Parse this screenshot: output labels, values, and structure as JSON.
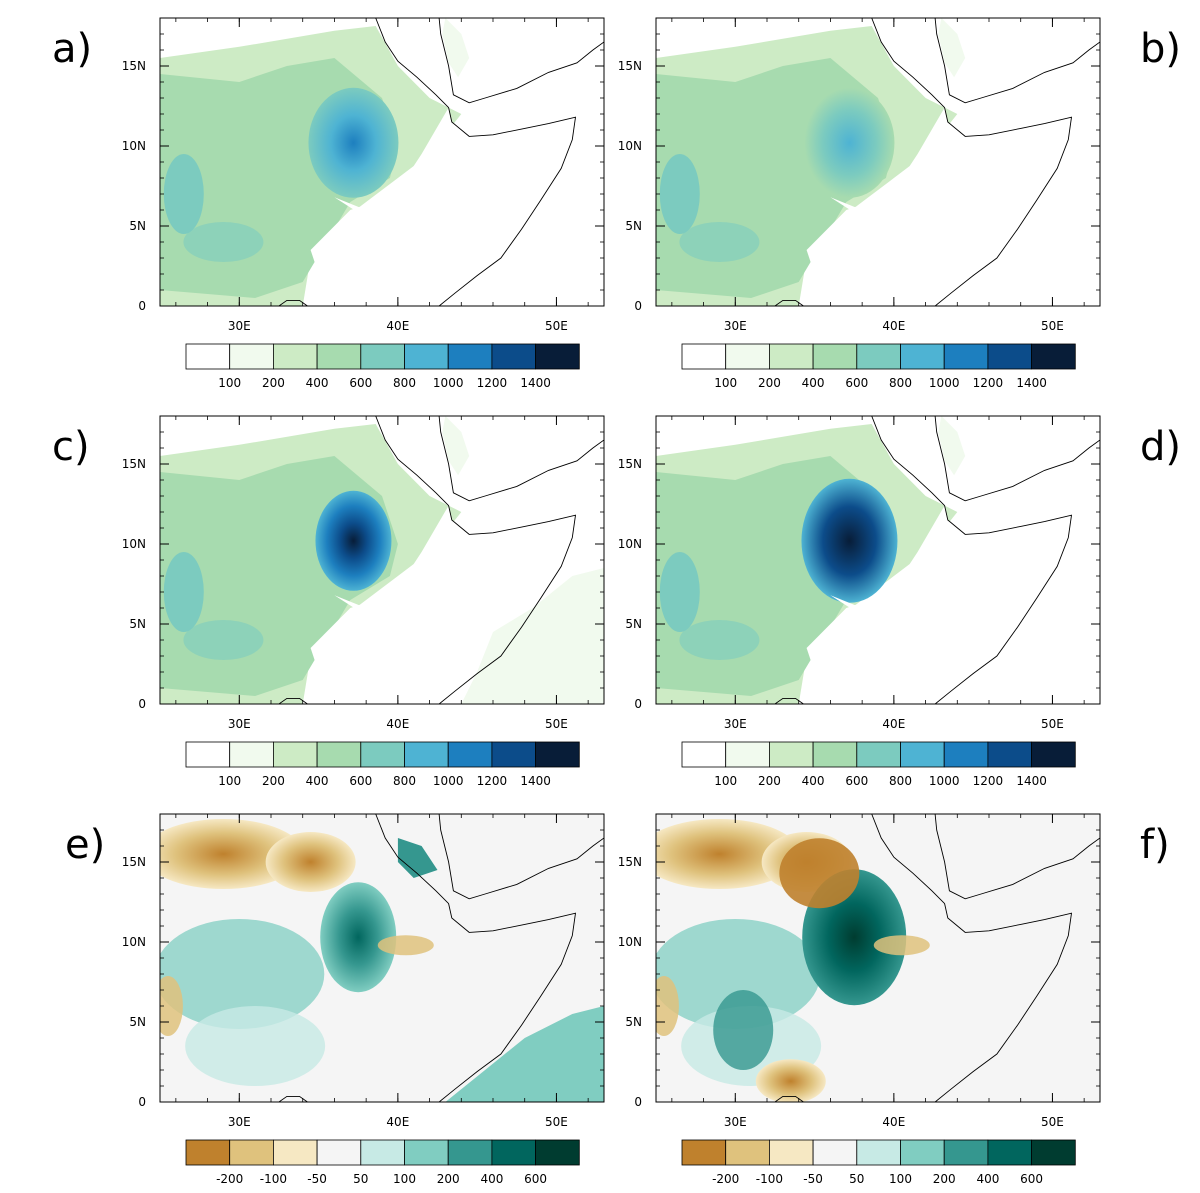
{
  "panels": [
    {
      "letter": "a)",
      "type": "precip"
    },
    {
      "letter": "b)",
      "type": "precip"
    },
    {
      "letter": "c)",
      "type": "precip"
    },
    {
      "letter": "d)",
      "type": "precip"
    },
    {
      "letter": "e)",
      "type": "diff"
    },
    {
      "letter": "f)",
      "type": "diff"
    }
  ],
  "axes": {
    "lon_range": [
      25,
      53
    ],
    "lat_range": [
      0,
      18
    ],
    "x_ticks": [
      {
        "value": 30,
        "label": "30E"
      },
      {
        "value": 40,
        "label": "40E"
      },
      {
        "value": 50,
        "label": "50E"
      }
    ],
    "y_ticks": [
      {
        "value": 0,
        "label": "0"
      },
      {
        "value": 5,
        "label": "5N"
      },
      {
        "value": 10,
        "label": "10N"
      },
      {
        "value": 15,
        "label": "15N"
      }
    ]
  },
  "colorbars": {
    "precip": {
      "labels": [
        "100",
        "200",
        "400",
        "600",
        "800",
        "1000",
        "1200",
        "1400"
      ],
      "colors": [
        "#ffffff",
        "#f1faee",
        "#cdebc5",
        "#a7dbaf",
        "#7ccbbf",
        "#4eb3d3",
        "#1d7fbf",
        "#0c4c8a",
        "#081d38"
      ]
    },
    "diff": {
      "labels": [
        "-200",
        "-100",
        "-50",
        "50",
        "100",
        "200",
        "400",
        "600"
      ],
      "colors": [
        "#bf812d",
        "#dfc27d",
        "#f6e8c3",
        "#f5f5f5",
        "#c7eae5",
        "#80cdc1",
        "#35978f",
        "#01665e",
        "#003c30"
      ]
    }
  }
}
